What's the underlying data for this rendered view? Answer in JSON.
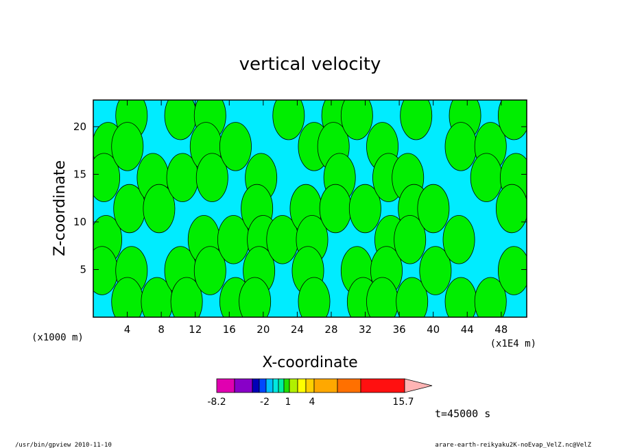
{
  "chart_data": {
    "type": "heatmap",
    "title": "vertical velocity",
    "xlabel": "X-coordinate",
    "ylabel": "Z-coordinate",
    "x_unit_label": "(x1000 m)",
    "x_secondary_unit_label": "(x1E4 m)",
    "x_ticks": [
      "4",
      "8",
      "12",
      "16",
      "20",
      "24",
      "28",
      "32",
      "36",
      "40",
      "44",
      "48"
    ],
    "x_tick_values": [
      4,
      8,
      12,
      16,
      20,
      24,
      28,
      32,
      36,
      40,
      44,
      48
    ],
    "y_ticks": [
      "5",
      "10",
      "15",
      "20"
    ],
    "y_tick_values": [
      5,
      10,
      15,
      20
    ],
    "xlim": [
      0,
      51
    ],
    "ylim": [
      0,
      22.8
    ],
    "colorbar": {
      "labels": [
        "-8.2",
        "-2",
        "1",
        "4",
        "15.7"
      ],
      "colors": [
        "#e000b0",
        "#8800c8",
        "#0000b8",
        "#0048ff",
        "#00c0ff",
        "#00e8e0",
        "#00f0a0",
        "#22e000",
        "#b0f000",
        "#ffff00",
        "#ffd000",
        "#ffa800",
        "#ff7000",
        "#ff1010",
        "#ff7070",
        "#ffb4b4"
      ],
      "pos_labels": [
        "-8.2",
        "-2",
        "1",
        "4",
        "15.7"
      ]
    },
    "field_colors": {
      "negative": "#00ecff",
      "positive": "#00ee00"
    },
    "columns": [
      [
        -1,
        1,
        1,
        -1,
        1,
        1,
        -1
      ],
      [
        1,
        1,
        -1,
        1,
        -1,
        1,
        1
      ],
      [
        -1,
        -1,
        1,
        1,
        -1,
        -1,
        1
      ],
      [
        1,
        -1,
        1,
        -1,
        -1,
        1,
        1
      ],
      [
        1,
        1,
        1,
        -1,
        1,
        1,
        -1
      ],
      [
        -1,
        1,
        -1,
        -1,
        1,
        -1,
        1
      ],
      [
        -1,
        -1,
        1,
        1,
        1,
        1,
        1
      ],
      [
        1,
        -1,
        -1,
        -1,
        1,
        -1,
        -1
      ],
      [
        -1,
        1,
        -1,
        1,
        1,
        1,
        1
      ],
      [
        1,
        1,
        1,
        1,
        -1,
        -1,
        -1
      ],
      [
        1,
        -1,
        -1,
        1,
        -1,
        1,
        1
      ],
      [
        -1,
        1,
        1,
        -1,
        1,
        1,
        1
      ],
      [
        1,
        -1,
        1,
        1,
        1,
        -1,
        1
      ],
      [
        -1,
        -1,
        -1,
        1,
        -1,
        1,
        -1
      ],
      [
        1,
        1,
        -1,
        -1,
        1,
        -1,
        1
      ],
      [
        -1,
        1,
        1,
        -1,
        -1,
        -1,
        1
      ],
      [
        1,
        -1,
        1,
        1,
        -1,
        1,
        -1
      ]
    ]
  },
  "time_label": "t=45000 s",
  "footer": {
    "left": "/usr/bin/gpview  2010-11-10",
    "right": "arare-earth-reikyaku2K-noEvap_VelZ.nc@VelZ"
  }
}
